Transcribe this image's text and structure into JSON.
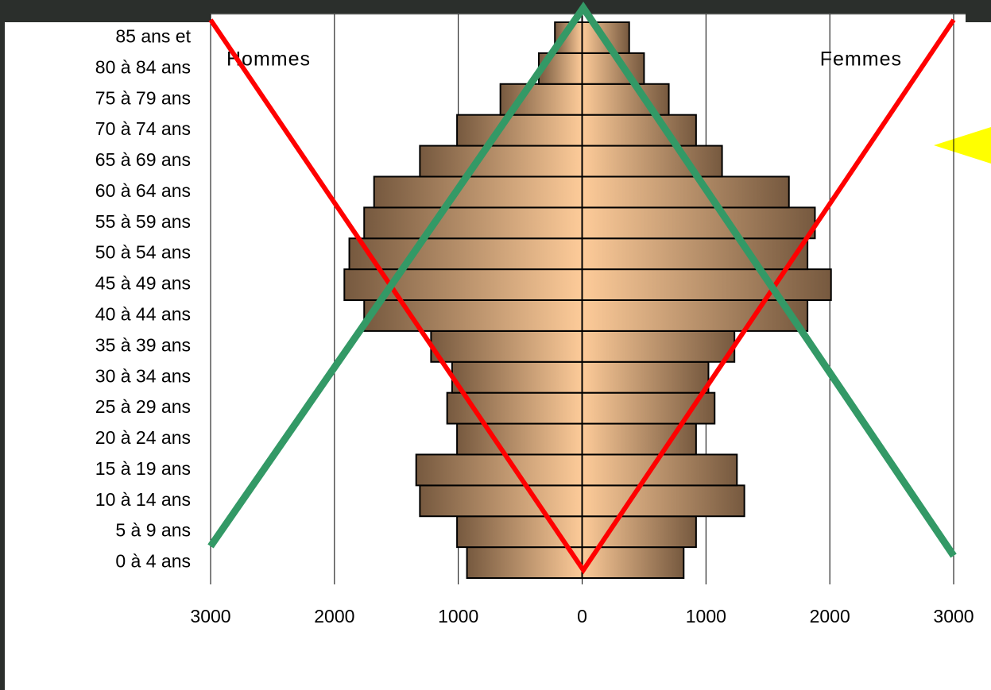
{
  "chart_data": {
    "type": "pyramid",
    "categories": [
      "0 à 4 ans",
      "5 à 9 ans",
      "10 à 14 ans",
      "15 à 19 ans",
      "20 à 24 ans",
      "25 à 29 ans",
      "30 à 34 ans",
      "35 à 39 ans",
      "40 à 44 ans",
      "45 à 49 ans",
      "50 à 54 ans",
      "55 à 59 ans",
      "60 à 64 ans",
      "65 à 69 ans",
      "70 à 74 ans",
      "75 à 79 ans",
      "80 à 84 ans",
      "85 ans et"
    ],
    "series": [
      {
        "name": "Hommes",
        "side": "left",
        "color": "#76593f",
        "values": [
          930,
          1010,
          1310,
          1340,
          1010,
          1090,
          1050,
          1220,
          1760,
          1920,
          1880,
          1760,
          1680,
          1310,
          1010,
          660,
          350,
          220
        ]
      },
      {
        "name": "Femmes",
        "side": "right",
        "color": "#76593f",
        "values": [
          820,
          920,
          1310,
          1250,
          920,
          1070,
          1020,
          1230,
          1820,
          2010,
          1820,
          1880,
          1670,
          1130,
          920,
          700,
          500,
          380
        ]
      }
    ],
    "xlim": [
      -3000,
      3000
    ],
    "xticks": [
      {
        "value": -3000,
        "label": "3000"
      },
      {
        "value": -2000,
        "label": "2000"
      },
      {
        "value": -1000,
        "label": "1000"
      },
      0,
      1000,
      2000,
      3000
    ],
    "grid": true
  }
}
